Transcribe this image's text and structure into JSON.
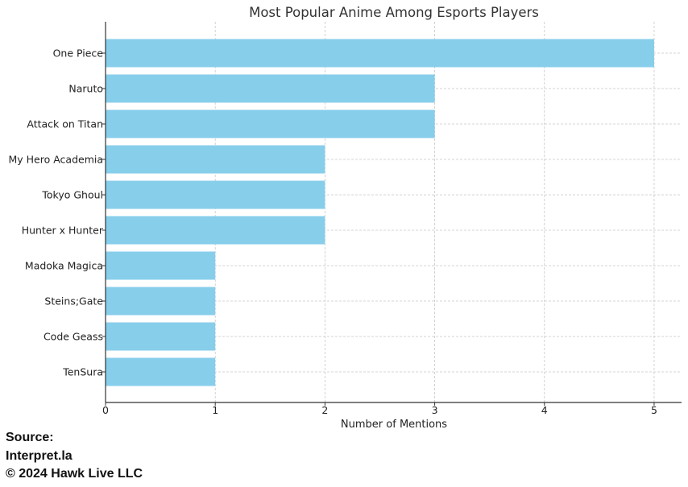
{
  "chart_data": {
    "type": "bar",
    "orientation": "horizontal",
    "title": "Most Popular Anime Among Esports Players",
    "xlabel": "Number of Mentions",
    "ylabel": "",
    "categories": [
      "One Piece",
      "Naruto",
      "Attack on Titan",
      "My Hero Academia",
      "Tokyo Ghoul",
      "Hunter x Hunter",
      "Madoka Magica",
      "Steins;Gate",
      "Code Geass",
      "TenSura"
    ],
    "values": [
      5,
      3,
      3,
      2,
      2,
      2,
      1,
      1,
      1,
      1
    ],
    "xlim": [
      0,
      5.25
    ],
    "xticks": [
      0,
      1,
      2,
      3,
      4,
      5
    ],
    "grid": true,
    "bar_color": "#87CEEB"
  },
  "footer": {
    "source_label": "Source:",
    "source_name": "Interpret.la",
    "copyright": "© 2024 Hawk Live LLC"
  }
}
